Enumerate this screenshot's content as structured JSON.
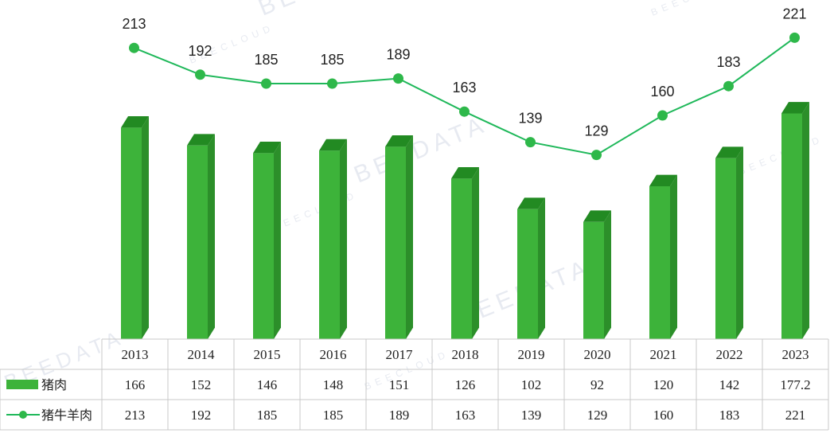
{
  "colors": {
    "bar_front": "#3db33a",
    "bar_side": "#2c8f2a",
    "bar_top": "#228a22",
    "line": "#1fb85a",
    "marker": "#2eb84a",
    "grid": "#c9c9c9"
  },
  "watermarks": [
    "BEEDATA",
    "BEECLOUD"
  ],
  "chart_data": {
    "type": "bar",
    "categories": [
      "2013",
      "2014",
      "2015",
      "2016",
      "2017",
      "2018",
      "2019",
      "2020",
      "2021",
      "2022",
      "2023"
    ],
    "series": [
      {
        "name": "猪肉",
        "type": "bar",
        "values": [
          166,
          152,
          146,
          148,
          151,
          126,
          102,
          92,
          120,
          142,
          177.2
        ]
      },
      {
        "name": "猪牛羊肉",
        "type": "line",
        "values": [
          213,
          192,
          185,
          185,
          189,
          163,
          139,
          129,
          160,
          183,
          221
        ]
      }
    ],
    "table": {
      "rows": [
        {
          "name": "猪肉",
          "values": [
            "166",
            "152",
            "146",
            "148",
            "151",
            "126",
            "102",
            "92",
            "120",
            "142",
            "177.2"
          ]
        },
        {
          "name": "猪牛羊肉",
          "values": [
            "213",
            "192",
            "185",
            "185",
            "189",
            "163",
            "139",
            "129",
            "160",
            "183",
            "221"
          ]
        }
      ]
    },
    "line_labels": [
      "213",
      "192",
      "185",
      "185",
      "189",
      "163",
      "139",
      "129",
      "160",
      "183",
      "221"
    ],
    "legend": "table-left",
    "grid": false
  }
}
